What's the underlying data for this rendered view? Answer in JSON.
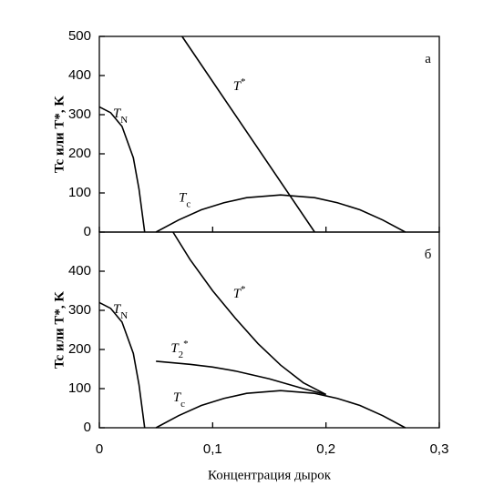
{
  "chart_data": [
    {
      "type": "line",
      "annotation": "а",
      "ylabel": "Tc или T*, K",
      "xlim": [
        0,
        0.3
      ],
      "ylim": [
        0,
        500
      ],
      "yticks": [
        0,
        100,
        200,
        300,
        400,
        500
      ],
      "series": [
        {
          "name": "TN",
          "color": "#000000",
          "x": [
            0,
            0.01,
            0.02,
            0.03,
            0.035,
            0.04
          ],
          "values": [
            320,
            305,
            270,
            190,
            110,
            0
          ]
        },
        {
          "name": "T*",
          "color": "#000000",
          "x": [
            0.073,
            0.19
          ],
          "values": [
            500,
            0
          ]
        },
        {
          "name": "Tc",
          "color": "#000000",
          "x": [
            0.05,
            0.07,
            0.09,
            0.11,
            0.13,
            0.16,
            0.19,
            0.21,
            0.23,
            0.25,
            0.27
          ],
          "values": [
            0,
            31,
            57,
            75,
            88,
            95,
            88,
            75,
            57,
            31,
            0
          ]
        }
      ]
    },
    {
      "type": "line",
      "annotation": "б",
      "ylabel": "Tc или T*, K",
      "xlabel": "Концентрация дырок",
      "xlim": [
        0,
        0.3
      ],
      "ylim": [
        0,
        500
      ],
      "yticks": [
        0,
        100,
        200,
        300,
        400
      ],
      "xticks": [
        0,
        {
          "value": 0.1,
          "label": "0,1"
        },
        {
          "value": 0.2,
          "label": "0,2"
        },
        {
          "value": 0.3,
          "label": "0,3"
        }
      ],
      "series": [
        {
          "name": "TN",
          "color": "#000000",
          "x": [
            0,
            0.01,
            0.02,
            0.03,
            0.035,
            0.04
          ],
          "values": [
            320,
            305,
            270,
            190,
            110,
            0
          ]
        },
        {
          "name": "T*",
          "color": "#000000",
          "x": [
            0.065,
            0.08,
            0.1,
            0.12,
            0.14,
            0.16,
            0.18,
            0.2
          ],
          "values": [
            500,
            430,
            350,
            280,
            215,
            160,
            115,
            85
          ]
        },
        {
          "name": "T2*",
          "color": "#000000",
          "x": [
            0.05,
            0.08,
            0.1,
            0.12,
            0.15,
            0.18,
            0.2
          ],
          "values": [
            170,
            162,
            155,
            145,
            125,
            100,
            85
          ]
        },
        {
          "name": "Tc",
          "color": "#000000",
          "x": [
            0.05,
            0.07,
            0.09,
            0.11,
            0.13,
            0.16,
            0.19,
            0.21,
            0.23,
            0.25,
            0.27
          ],
          "values": [
            0,
            31,
            57,
            75,
            88,
            95,
            88,
            75,
            57,
            31,
            0
          ]
        }
      ]
    }
  ]
}
